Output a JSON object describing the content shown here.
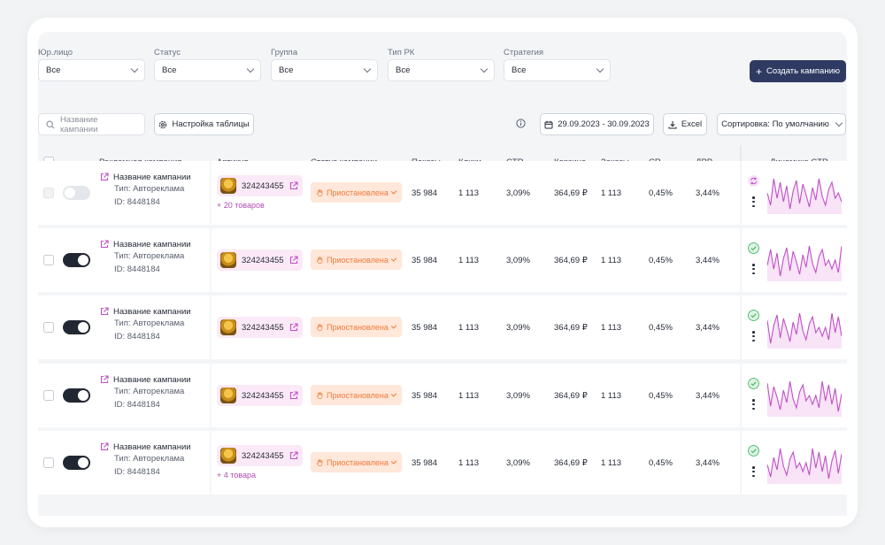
{
  "filters": [
    {
      "label": "Юр.лицо",
      "value": "Все"
    },
    {
      "label": "Статус",
      "value": "Все"
    },
    {
      "label": "Группа",
      "value": "Все"
    },
    {
      "label": "Тип РК",
      "value": "Все"
    },
    {
      "label": "Стратегия",
      "value": "Все"
    }
  ],
  "toolbar": {
    "create_label": "Создать кампанию",
    "search_placeholder": "Название кампании",
    "table_settings_label": "Настройка таблицы",
    "date_range": "29.09.2023 - 30.09.2023",
    "excel_label": "Excel",
    "sort_label": "Сортировка: По умолчанию"
  },
  "columns": {
    "campaign": "Рекламная кампания",
    "article": "Артикул",
    "status": "Статус кампании",
    "shows": "Показы",
    "clicks": "Клики",
    "ctr": "CTR",
    "cart": "Корзина",
    "orders": "Заказы",
    "cr": "CR",
    "drr": "ДРР",
    "dynamics": "Динамика CTR"
  },
  "rows": [
    {
      "name": "Название кампании",
      "type": "Тип: Автореклама",
      "id": "ID: 8448184",
      "active": false,
      "article": "324243455",
      "more": "+ 20 товаров",
      "status": "Приостановлена",
      "shows": "35 984",
      "clicks": "1 113",
      "ctr": "3,09%",
      "cart": "364,69 ₽",
      "orders": "1 113",
      "cr": "0,45%",
      "drr": "3,44%",
      "dyn_state": "sync"
    },
    {
      "name": "Название кампании",
      "type": "Тип: Автореклама",
      "id": "ID: 8448184",
      "active": true,
      "article": "324243455",
      "more": "",
      "status": "Приостановлена",
      "shows": "35 984",
      "clicks": "1 113",
      "ctr": "3,09%",
      "cart": "364,69 ₽",
      "orders": "1 113",
      "cr": "0,45%",
      "drr": "3,44%",
      "dyn_state": "ok"
    },
    {
      "name": "Название кампании",
      "type": "Тип: Автореклама",
      "id": "ID: 8448184",
      "active": true,
      "article": "324243455",
      "more": "",
      "status": "Приостановлена",
      "shows": "35 984",
      "clicks": "1 113",
      "ctr": "3,09%",
      "cart": "364,69 ₽",
      "orders": "1 113",
      "cr": "0,45%",
      "drr": "3,44%",
      "dyn_state": "ok"
    },
    {
      "name": "Название кампании",
      "type": "Тип: Автореклама",
      "id": "ID: 8448184",
      "active": true,
      "article": "324243455",
      "more": "",
      "status": "Приостановлена",
      "shows": "35 984",
      "clicks": "1 113",
      "ctr": "3,09%",
      "cart": "364,69 ₽",
      "orders": "1 113",
      "cr": "0,45%",
      "drr": "3,44%",
      "dyn_state": "ok"
    },
    {
      "name": "Название кампании",
      "type": "Тип: Автореклама",
      "id": "ID: 8448184",
      "active": true,
      "article": "324243455",
      "more": "+ 4 товара",
      "status": "Приостановлена",
      "shows": "35 984",
      "clicks": "1 113",
      "ctr": "3,09%",
      "cart": "364,69 ₽",
      "orders": "1 113",
      "cr": "0,45%",
      "drr": "3,44%",
      "dyn_state": "ok"
    }
  ],
  "sparkline": [
    0.55,
    0.2,
    0.95,
    0.4,
    0.85,
    0.3,
    0.75,
    0.1,
    0.6,
    0.9,
    0.25,
    0.8,
    0.5,
    0.15,
    0.7,
    0.35,
    0.95,
    0.45,
    0.2,
    0.65,
    0.85,
    0.4,
    0.55,
    0.3
  ],
  "colors": {
    "accent": "#2f3a63",
    "status_bg": "#ffe7d9",
    "status_text": "#f07a3a",
    "spark_line": "#c04fc7",
    "spark_fill": "#f8e3f7",
    "ok": "#4cbb6a",
    "sync": "#c04fc7"
  }
}
